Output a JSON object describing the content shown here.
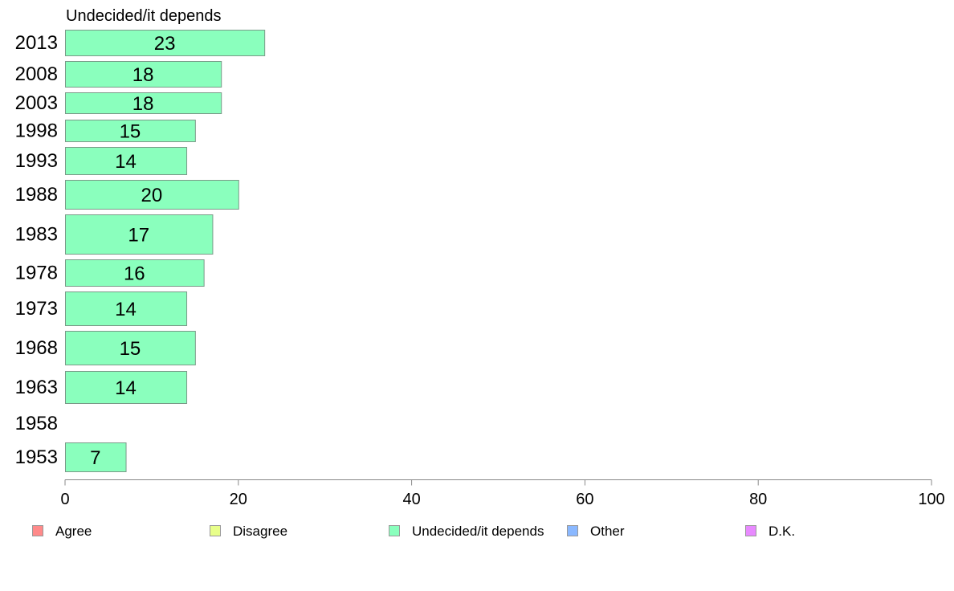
{
  "chart_data": {
    "type": "bar",
    "orientation": "horizontal",
    "panel_title": "Undecided/it depends",
    "categories": [
      "2013",
      "2008",
      "2003",
      "1998",
      "1993",
      "1988",
      "1983",
      "1978",
      "1973",
      "1968",
      "1963",
      "1958",
      "1953"
    ],
    "series": [
      {
        "name": "Undecided/it depends",
        "color": "#8affbd",
        "values": [
          23,
          18,
          18,
          15,
          14,
          20,
          17,
          16,
          14,
          15,
          14,
          null,
          7
        ]
      }
    ],
    "xlim": [
      0,
      100
    ],
    "xticks": [
      0,
      20,
      40,
      60,
      80,
      100
    ],
    "grid": false,
    "legend": {
      "placement": "bottom",
      "items": [
        {
          "label": "Agree",
          "color": "#ff8a8a"
        },
        {
          "label": "Disagree",
          "color": "#e8ff8a"
        },
        {
          "label": "Undecided/it depends",
          "color": "#8affbd"
        },
        {
          "label": "Other",
          "color": "#8ab8ff"
        },
        {
          "label": "D.K.",
          "color": "#e88aff"
        }
      ]
    },
    "bar_stroke": "#7a9a88",
    "axis_color": "#888888"
  }
}
